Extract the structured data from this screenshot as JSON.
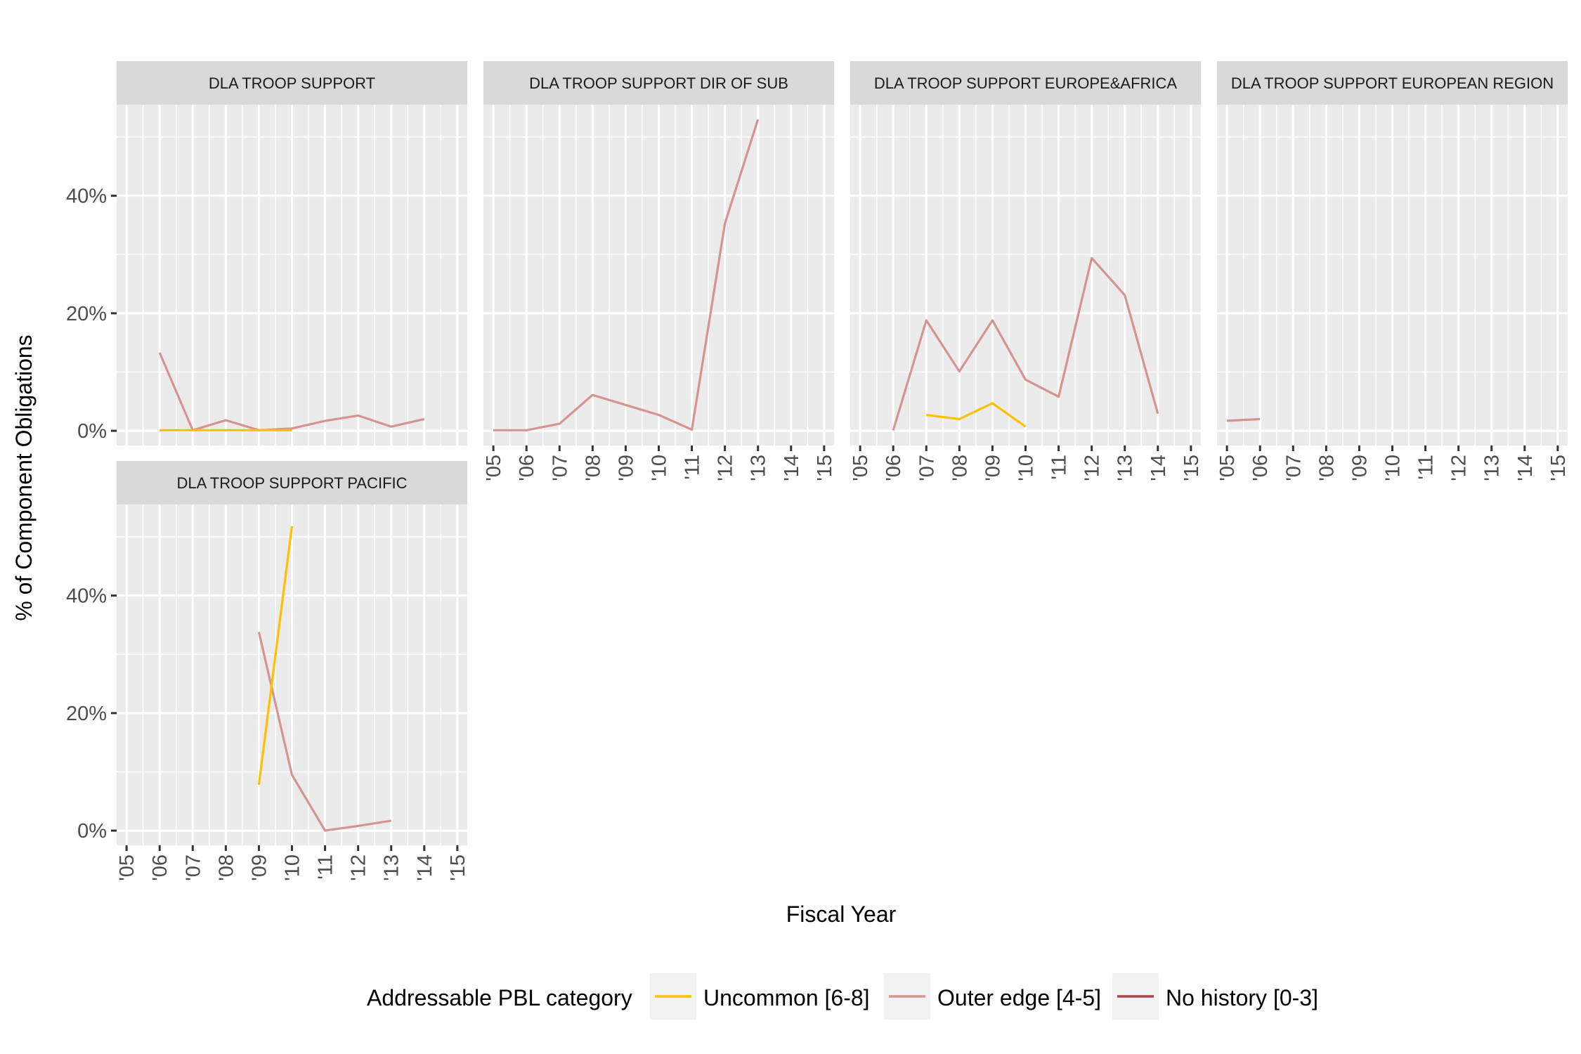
{
  "chart_data": {
    "type": "line",
    "xlabel": "Fiscal Year",
    "ylabel": "% of Component Obligations",
    "x_ticks": [
      "'05",
      "'06",
      "'07",
      "'08",
      "'09",
      "'10",
      "'11",
      "'12",
      "'13",
      "'14",
      "'15"
    ],
    "y_ticks": [
      "0%",
      "20%",
      "40%"
    ],
    "ylim": [
      -0.025,
      0.555
    ],
    "xlim": [
      2004.7,
      2015.3
    ],
    "grid": true,
    "legend": {
      "title": "Addressable PBL category",
      "position": "bottom",
      "entries": [
        {
          "name": "Uncommon [6-8]",
          "color": "#FFC000"
        },
        {
          "name": "Outer edge [4-5]",
          "color": "#D59490"
        },
        {
          "name": "No history [0-3]",
          "color": "#A8454A"
        }
      ]
    },
    "panels": [
      {
        "title": "DLA TROOP SUPPORT",
        "series": [
          {
            "name": "Outer edge [4-5]",
            "x": [
              2006,
              2007,
              2008,
              2009,
              2010,
              2011,
              2012,
              2013,
              2014
            ],
            "y": [
              0.133,
              0.001,
              0.018,
              0.001,
              0.004,
              0.017,
              0.026,
              0.007,
              0.02
            ]
          },
          {
            "name": "Uncommon [6-8]",
            "x": [
              2006,
              2007,
              2008,
              2009,
              2010
            ],
            "y": [
              0.001,
              0.001,
              0.001,
              0.001,
              0.001
            ]
          }
        ]
      },
      {
        "title": "DLA TROOP SUPPORT DIR OF SUB",
        "series": [
          {
            "name": "Outer edge [4-5]",
            "x": [
              2005,
              2006,
              2007,
              2008,
              2009,
              2010,
              2011,
              2012,
              2013
            ],
            "y": [
              0.001,
              0.001,
              0.012,
              0.061,
              0.044,
              0.027,
              0.002,
              0.353,
              0.53
            ]
          }
        ]
      },
      {
        "title": "DLA TROOP SUPPORT EUROPE&AFRICA",
        "series": [
          {
            "name": "Outer edge [4-5]",
            "x": [
              2006,
              2007,
              2008,
              2009,
              2010,
              2011,
              2012,
              2013,
              2014
            ],
            "y": [
              0.001,
              0.188,
              0.101,
              0.188,
              0.087,
              0.058,
              0.294,
              0.231,
              0.029
            ]
          },
          {
            "name": "Uncommon [6-8]",
            "x": [
              2007,
              2008,
              2009,
              2010
            ],
            "y": [
              0.027,
              0.02,
              0.047,
              0.007
            ]
          }
        ]
      },
      {
        "title": "DLA TROOP SUPPORT EUROPEAN REGION",
        "series": [
          {
            "name": "Outer edge [4-5]",
            "x": [
              2005,
              2006
            ],
            "y": [
              0.017,
              0.02
            ]
          }
        ]
      },
      {
        "title": "DLA TROOP SUPPORT PACIFIC",
        "series": [
          {
            "name": "Outer edge [4-5]",
            "x": [
              2009,
              2010,
              2011,
              2012,
              2013
            ],
            "y": [
              0.338,
              0.095,
              0.0,
              0.008,
              0.017
            ]
          },
          {
            "name": "Uncommon [6-8]",
            "x": [
              2009,
              2010
            ],
            "y": [
              0.078,
              0.518
            ]
          }
        ]
      }
    ]
  }
}
